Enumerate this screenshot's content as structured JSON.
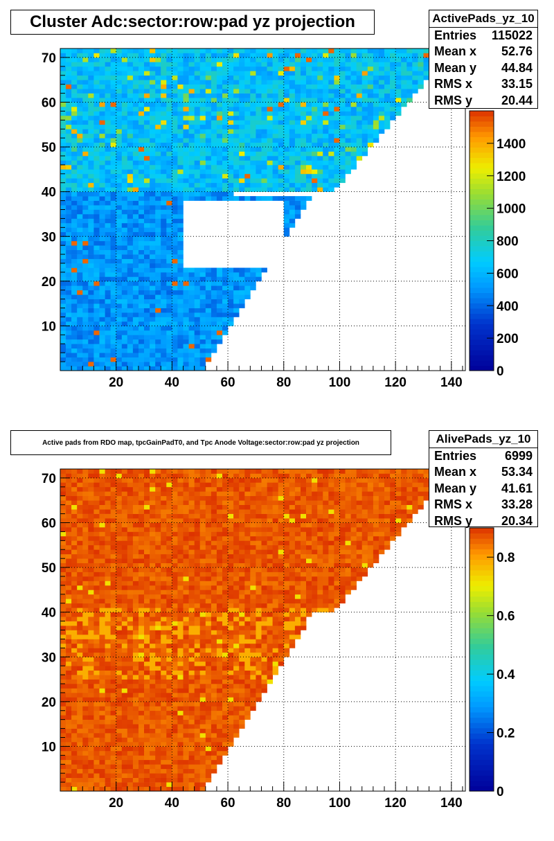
{
  "chart_data": [
    {
      "type": "heatmap",
      "title": "Cluster Adc:sector:row:pad yz projection",
      "xlabel": "",
      "ylabel": "",
      "xlim": [
        0,
        145
      ],
      "ylim": [
        0,
        72
      ],
      "x_ticks": [
        "20",
        "40",
        "60",
        "80",
        "100",
        "120",
        "140"
      ],
      "y_ticks": [
        "10",
        "20",
        "30",
        "40",
        "50",
        "60",
        "70"
      ],
      "colorbar": {
        "range": [
          0,
          1600
        ],
        "ticks": [
          "0",
          "200",
          "400",
          "600",
          "800",
          "1000",
          "1200",
          "1400"
        ]
      },
      "grid": true,
      "stats": {
        "name": "ActivePads_yz_10",
        "entries": {
          "label": "Entries",
          "value": "115022"
        },
        "mean_x": {
          "label": "Mean x",
          "value": "52.76"
        },
        "mean_y": {
          "label": "Mean y",
          "value": "44.84"
        },
        "rms_x": {
          "label": "RMS x",
          "value": "33.15"
        },
        "rms_y": {
          "label": "RMS y",
          "value": "20.44"
        }
      }
    },
    {
      "type": "heatmap",
      "title": "Active pads from RDO map, tpcGainPadT0,  and Tpc Anode Voltage:sector:row:pad yz projection",
      "xlabel": "",
      "ylabel": "",
      "xlim": [
        0,
        145
      ],
      "ylim": [
        0,
        72
      ],
      "x_ticks": [
        "20",
        "40",
        "60",
        "80",
        "100",
        "120",
        "140"
      ],
      "y_ticks": [
        "10",
        "20",
        "30",
        "40",
        "50",
        "60",
        "70"
      ],
      "colorbar": {
        "range": [
          0,
          0.9
        ],
        "ticks": [
          "0",
          "0.2",
          "0.4",
          "0.6",
          "0.8"
        ]
      },
      "grid": true,
      "stats": {
        "name": "AlivePads_yz_10",
        "entries": {
          "label": "Entries",
          "value": "6999"
        },
        "mean_x": {
          "label": "Mean x",
          "value": "53.34"
        },
        "mean_y": {
          "label": "Mean y",
          "value": "41.61"
        },
        "rms_x": {
          "label": "RMS x",
          "value": "33.28"
        },
        "rms_y": {
          "label": "RMS y",
          "value": "20.34"
        }
      }
    }
  ]
}
